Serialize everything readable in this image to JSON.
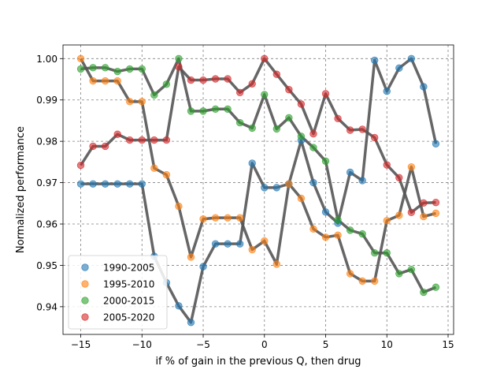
{
  "chart_data": {
    "type": "scatter",
    "xlabel": "if % of gain in the previous Q, then drug",
    "ylabel": "Normalized performance",
    "xlim": [
      -16.45,
      15.45
    ],
    "ylim": [
      0.9333,
      1.0033
    ],
    "xticks": [
      -15,
      -10,
      -5,
      0,
      5,
      10,
      15
    ],
    "yticks": [
      0.94,
      0.95,
      0.96,
      0.97,
      0.98,
      0.99,
      1.0
    ],
    "ytick_labels": [
      "0.94",
      "0.95",
      "0.96",
      "0.97",
      "0.98",
      "0.99",
      "1.00"
    ],
    "grid": true,
    "legend_position": "lower-left",
    "line_color": "#555555",
    "x": [
      -15,
      -14,
      -13,
      -12,
      -11,
      -10,
      -9,
      -8,
      -7,
      -6,
      -5,
      -4,
      -3,
      -2,
      -1,
      0,
      1,
      2,
      3,
      4,
      5,
      6,
      7,
      8,
      9,
      10,
      11,
      12,
      13,
      14
    ],
    "series": [
      {
        "name": "1990-2005",
        "color": "#1f77b4",
        "values": [
          0.9697,
          0.9697,
          0.9697,
          0.9697,
          0.9697,
          0.9697,
          0.9522,
          0.9458,
          0.9402,
          0.9362,
          0.9497,
          0.9552,
          0.9552,
          0.9552,
          0.9747,
          0.9688,
          0.9688,
          0.9697,
          0.9802,
          0.97,
          0.9629,
          0.9602,
          0.9725,
          0.9705,
          0.9996,
          0.9921,
          0.9977,
          1.0,
          0.9932,
          0.9794
        ]
      },
      {
        "name": "1995-2010",
        "color": "#ff7f0e",
        "values": [
          1.0,
          0.9946,
          0.9946,
          0.9946,
          0.9896,
          0.9896,
          0.9735,
          0.9719,
          0.9643,
          0.952,
          0.9612,
          0.9615,
          0.9615,
          0.9615,
          0.9538,
          0.9559,
          0.9503,
          0.9697,
          0.9662,
          0.9588,
          0.9568,
          0.9573,
          0.948,
          0.9462,
          0.9462,
          0.9608,
          0.9621,
          0.9738,
          0.9618,
          0.9626
        ]
      },
      {
        "name": "2000-2015",
        "color": "#2ca02c",
        "values": [
          0.9975,
          0.9978,
          0.9978,
          0.9969,
          0.9975,
          0.9975,
          0.9912,
          0.9938,
          1.0,
          0.9873,
          0.9873,
          0.9878,
          0.9878,
          0.9845,
          0.9832,
          0.9913,
          0.983,
          0.9857,
          0.9812,
          0.9785,
          0.9752,
          0.961,
          0.9585,
          0.9576,
          0.953,
          0.953,
          0.948,
          0.949,
          0.9435,
          0.9447
        ]
      },
      {
        "name": "2005-2020",
        "color": "#d62728",
        "values": [
          0.9742,
          0.9788,
          0.9788,
          0.9817,
          0.9803,
          0.9803,
          0.9803,
          0.9803,
          0.998,
          0.9948,
          0.9948,
          0.9951,
          0.9951,
          0.9918,
          0.9939,
          1.0,
          0.9962,
          0.9925,
          0.989,
          0.9818,
          0.9915,
          0.9855,
          0.9827,
          0.9829,
          0.9809,
          0.9743,
          0.9712,
          0.9628,
          0.9651,
          0.9652
        ]
      }
    ]
  }
}
